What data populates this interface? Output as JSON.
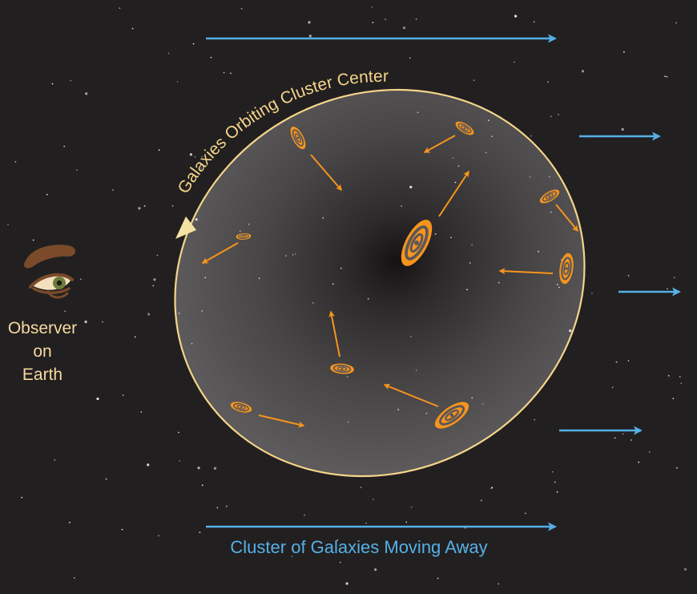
{
  "diagram": {
    "orbit_label": "Galaxies Orbiting Cluster Center",
    "observer_label": [
      "Observer",
      "on",
      "Earth"
    ],
    "bottom_caption": "Cluster of Galaxies Moving Away",
    "icons": [
      "eye-icon",
      "eyebrow-icon",
      "galaxy-icon",
      "motion-arrow-icon",
      "star-icon"
    ],
    "colors": {
      "background": "#221f20",
      "orbit": "#f5d58a",
      "galaxy": "#f7941d",
      "arrow_blue": "#55b0e6",
      "observer_text": "#f6d9a0",
      "eye_brown": "#7a4a2a"
    }
  }
}
